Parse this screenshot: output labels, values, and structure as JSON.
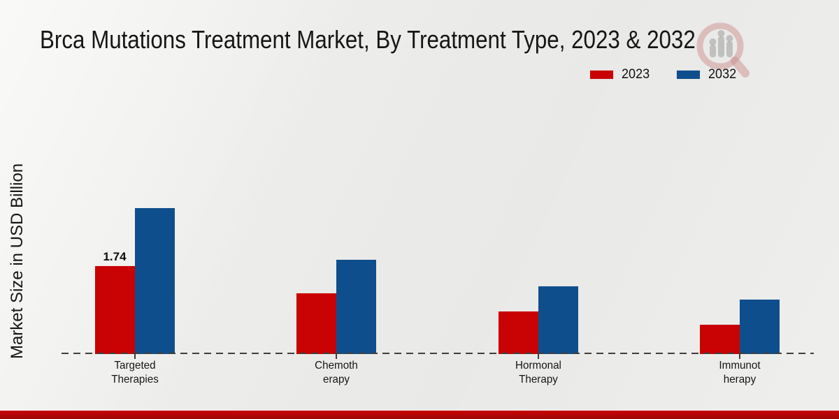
{
  "chart_data": {
    "type": "bar",
    "title": "Brca Mutations Treatment Market, By Treatment Type, 2023 & 2032",
    "ylabel": "Market Size in USD Billion",
    "categories": [
      "Targeted Therapies",
      "Chemotherapy",
      "Hormonal Therapy",
      "Immunotherapy"
    ],
    "category_lines": [
      [
        "Targeted",
        "Therapies"
      ],
      [
        "Chemoth",
        "erapy"
      ],
      [
        "Hormonal",
        "Therapy"
      ],
      [
        "Immunot",
        "herapy"
      ]
    ],
    "series": [
      {
        "name": "2023",
        "color": "#c90303",
        "values": [
          1.74,
          1.2,
          0.84,
          0.58
        ],
        "value_labels": [
          "1.74",
          "",
          "",
          ""
        ]
      },
      {
        "name": "2032",
        "color": "#0f4e8c",
        "values": [
          2.89,
          1.86,
          1.34,
          1.08
        ],
        "value_labels": [
          "",
          "",
          "",
          ""
        ]
      }
    ],
    "ylim": [
      0,
      3.2
    ],
    "grid": false,
    "legend_position": "top-right",
    "baseline_style": "dashed"
  },
  "colors": {
    "bar_2023": "#c90303",
    "bar_2032": "#0f4e8c",
    "footer_band": "#c00000",
    "watermark_pink": "#cc8f8f",
    "background": "#eaeae8"
  }
}
